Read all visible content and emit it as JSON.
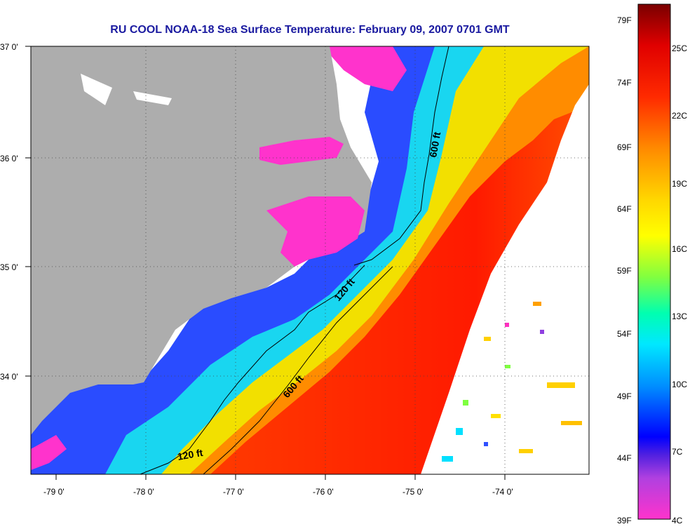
{
  "title": "RU COOL  NOAA-18  Sea Surface Temperature:  February 09, 2007 0701 GMT",
  "lat_labels": [
    "37 0'",
    "36 0'",
    "35 0'",
    "34 0'"
  ],
  "lon_labels": [
    "-79 0'",
    "-78 0'",
    "-77 0'",
    "-76 0'",
    "-75 0'",
    "-74 0'"
  ],
  "contours": {
    "c600_north": "600 ft",
    "c120": "120 ft",
    "c600_south": "600 ft",
    "c120_south": "120 ft"
  },
  "colorbar": {
    "fahrenheit": [
      "79F",
      "74F",
      "69F",
      "64F",
      "59F",
      "54F",
      "49F",
      "44F",
      "39F"
    ],
    "celsius": [
      "25C",
      "22C",
      "19C",
      "16C",
      "13C",
      "10C",
      "7C",
      "4C"
    ]
  },
  "colors": {
    "land": "#adadad",
    "title": "#1a1aa0",
    "warm": "#ff2a00",
    "cold": "#ff33cc"
  }
}
